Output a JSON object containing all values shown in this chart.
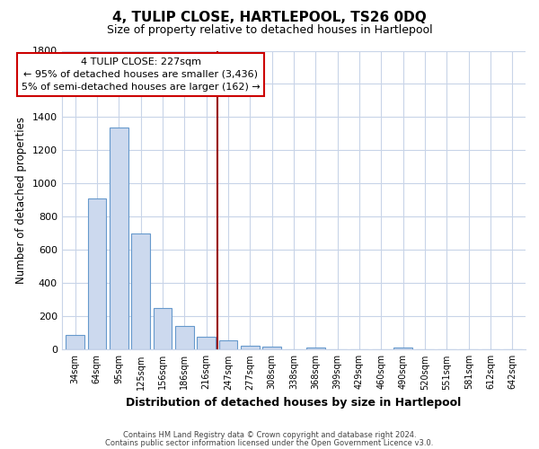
{
  "title": "4, TULIP CLOSE, HARTLEPOOL, TS26 0DQ",
  "subtitle": "Size of property relative to detached houses in Hartlepool",
  "xlabel": "Distribution of detached houses by size in Hartlepool",
  "ylabel": "Number of detached properties",
  "categories": [
    "34sqm",
    "64sqm",
    "95sqm",
    "125sqm",
    "156sqm",
    "186sqm",
    "216sqm",
    "247sqm",
    "277sqm",
    "308sqm",
    "338sqm",
    "368sqm",
    "399sqm",
    "429sqm",
    "460sqm",
    "490sqm",
    "520sqm",
    "551sqm",
    "581sqm",
    "612sqm",
    "642sqm"
  ],
  "values": [
    90,
    910,
    1340,
    700,
    250,
    140,
    80,
    55,
    25,
    20,
    0,
    15,
    0,
    0,
    0,
    15,
    0,
    0,
    0,
    0,
    0
  ],
  "bar_color": "#ccd9ee",
  "bar_edge_color": "#6699cc",
  "vline_x_idx": 6.5,
  "vline_color": "#990000",
  "ylim": [
    0,
    1800
  ],
  "yticks": [
    0,
    200,
    400,
    600,
    800,
    1000,
    1200,
    1400,
    1600,
    1800
  ],
  "annotation_title": "4 TULIP CLOSE: 227sqm",
  "annotation_line1": "← 95% of detached houses are smaller (3,436)",
  "annotation_line2": "5% of semi-detached houses are larger (162) →",
  "annotation_box_color": "#ffffff",
  "annotation_box_edge": "#cc0000",
  "footer1": "Contains HM Land Registry data © Crown copyright and database right 2024.",
  "footer2": "Contains public sector information licensed under the Open Government Licence v3.0.",
  "bg_color": "#ffffff",
  "grid_color": "#c8d4e8"
}
